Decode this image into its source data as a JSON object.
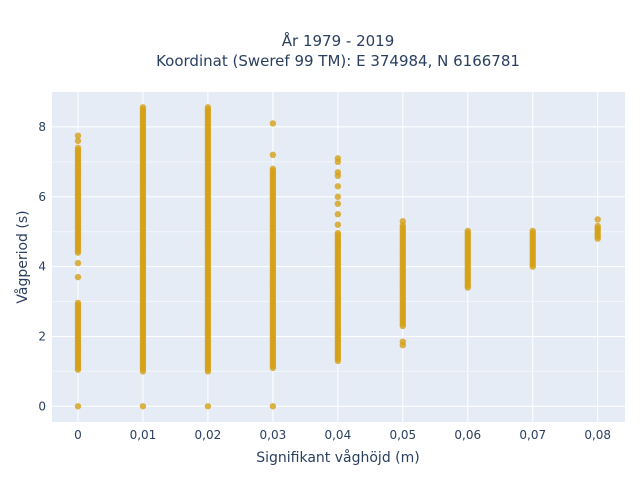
{
  "chart_data": {
    "type": "scatter",
    "title_line1": "År 1979 - 2019",
    "title_line2": "Koordinat (Sweref 99 TM): E 374984, N 6166781",
    "xlabel": "Signifikant våghöjd (m)",
    "ylabel": "Vågperiod (s)",
    "xlim": [
      -0.004,
      0.0842
    ],
    "ylim": [
      -0.45,
      9.0
    ],
    "x_ticks": [
      0,
      0.01,
      0.02,
      0.03,
      0.04,
      0.05,
      0.06,
      0.07,
      0.08
    ],
    "x_tick_labels": [
      "0",
      "0,01",
      "0,02",
      "0,03",
      "0,04",
      "0,05",
      "0,06",
      "0,07",
      "0,08"
    ],
    "y_ticks": [
      0,
      2,
      4,
      6,
      8
    ],
    "y_tick_labels": [
      "0",
      "2",
      "4",
      "6",
      "8"
    ],
    "grid": true,
    "legend": "none",
    "marker_color": "#d4a017",
    "plot_background": "#e5ecf6",
    "series": [
      {
        "columns": [
          {
            "x": 0,
            "ranges": [
              [
                1.1,
                3.0
              ],
              [
                4.4,
                7.4
              ]
            ],
            "points": [
              0,
              1.05,
              3.7,
              4.1,
              7.6,
              7.75
            ]
          },
          {
            "x": 0.01,
            "ranges": [
              [
                1.0,
                8.6
              ]
            ],
            "points": [
              0
            ]
          },
          {
            "x": 0.02,
            "ranges": [
              [
                1.0,
                8.6
              ]
            ],
            "points": [
              0
            ]
          },
          {
            "x": 0.03,
            "ranges": [
              [
                1.1,
                6.8
              ]
            ],
            "points": [
              0,
              7.2,
              8.1
            ]
          },
          {
            "x": 0.04,
            "ranges": [
              [
                1.3,
                5.0
              ]
            ],
            "points": [
              5.2,
              5.5,
              5.8,
              6.0,
              6.3,
              6.6,
              6.7,
              7.0,
              7.1
            ]
          },
          {
            "x": 0.05,
            "ranges": [
              [
                2.3,
                5.2
              ]
            ],
            "points": [
              1.75,
              1.85,
              5.3
            ]
          },
          {
            "x": 0.06,
            "ranges": [
              [
                3.4,
                5.05
              ]
            ],
            "points": []
          },
          {
            "x": 0.07,
            "ranges": [
              [
                4.0,
                5.05
              ]
            ],
            "points": []
          },
          {
            "x": 0.08,
            "ranges": [
              [
                4.8,
                5.2
              ]
            ],
            "points": [
              5.35
            ]
          }
        ]
      }
    ]
  }
}
